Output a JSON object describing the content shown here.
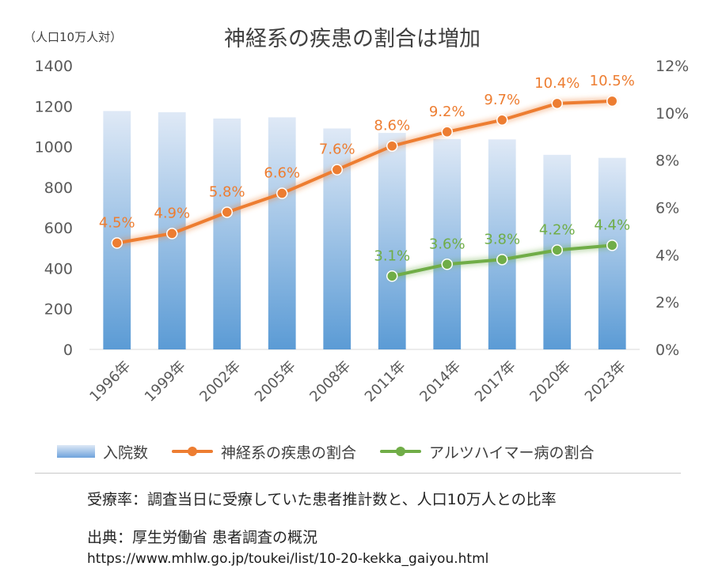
{
  "chart_data": {
    "type": "bar+line",
    "title": "神経系の疾患の割合は増加",
    "unit_label": "（人口10万人対）",
    "categories": [
      "1996年",
      "1999年",
      "2002年",
      "2005年",
      "2008年",
      "2011年",
      "2014年",
      "2017年",
      "2020年",
      "2023年"
    ],
    "bars": {
      "name": "入院数",
      "values": [
        1176,
        1170,
        1139,
        1145,
        1090,
        1068,
        1038,
        1036,
        960,
        945
      ],
      "ylim": [
        0,
        1400
      ]
    },
    "lines": [
      {
        "name": "神経系の疾患の割合",
        "color": "#ed7d31",
        "values": [
          4.5,
          4.9,
          5.8,
          6.6,
          7.6,
          8.6,
          9.2,
          9.7,
          10.4,
          10.5
        ],
        "labels": [
          "4.5%",
          "4.9%",
          "5.8%",
          "6.6%",
          "7.6%",
          "8.6%",
          "9.2%",
          "9.7%",
          "10.4%",
          "10.5%"
        ]
      },
      {
        "name": "アルツハイマー病の割合",
        "color": "#70ad47",
        "values": [
          null,
          null,
          null,
          null,
          null,
          3.1,
          3.6,
          3.8,
          4.2,
          4.4
        ],
        "labels": [
          null,
          null,
          null,
          null,
          null,
          "3.1%",
          "3.6%",
          "3.8%",
          "4.2%",
          "4.4%"
        ]
      }
    ],
    "y_left_ticks": [
      "0",
      "200",
      "400",
      "600",
      "800",
      "1000",
      "1200",
      "1400"
    ],
    "y_right_ticks": [
      "0%",
      "2%",
      "4%",
      "6%",
      "8%",
      "10%",
      "12%"
    ],
    "y_right_range": [
      0,
      12
    ],
    "legend_position": "bottom"
  },
  "legend": {
    "bars": "入院数",
    "line1": "神経系の疾患の割合",
    "line2": "アルツハイマー病の割合"
  },
  "note": "受療率：調査当日に受療していた患者推計数と、人口10万人との比率",
  "source": "出典：厚生労働省 患者調査の概況",
  "url": "https://www.mhlw.go.jp/toukei/list/10-20-kekka_gaiyou.html"
}
